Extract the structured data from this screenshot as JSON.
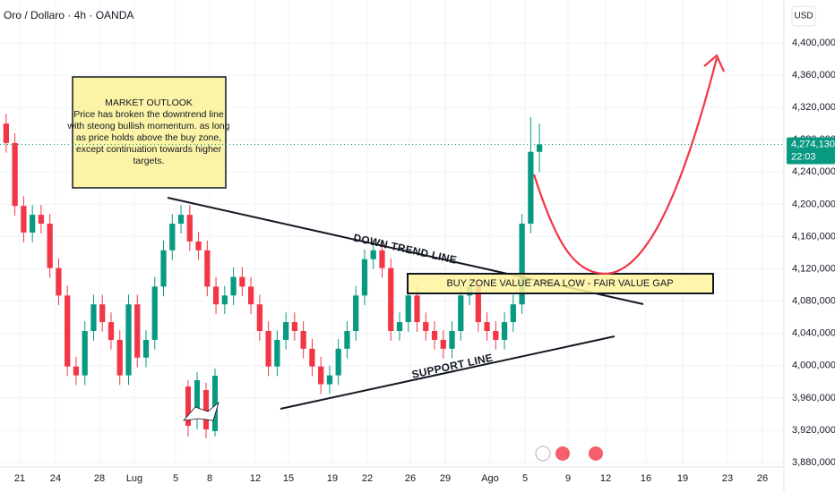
{
  "chart_data": {
    "type": "candlestick",
    "title": "Oro / Dollaro · 4h · OANDA",
    "currency": "USD",
    "up_color": "#089981",
    "down_color": "#f23645",
    "grid": true,
    "ylim": [
      3874500,
      4453200
    ],
    "yticks": [
      {
        "value": 3880000,
        "label": "3,880,000"
      },
      {
        "value": 3920000,
        "label": "3,920,000"
      },
      {
        "value": 3960000,
        "label": "3,960,000"
      },
      {
        "value": 4000000,
        "label": "4,000,000"
      },
      {
        "value": 4040000,
        "label": "4,040,000"
      },
      {
        "value": 4080000,
        "label": "4,080,000"
      },
      {
        "value": 4120000,
        "label": "4,120,000"
      },
      {
        "value": 4160000,
        "label": "4,160,000"
      },
      {
        "value": 4200000,
        "label": "4,200,000"
      },
      {
        "value": 4240000,
        "label": "4,240,000"
      },
      {
        "value": 4280000,
        "label": "4,280,000"
      },
      {
        "value": 4320000,
        "label": "4,320,000"
      },
      {
        "value": 4360000,
        "label": "4,360,000"
      },
      {
        "value": 4400000,
        "label": "4,400,000"
      }
    ],
    "xtick_labels": [
      "21",
      "24",
      "28",
      "Lug",
      "5",
      "8",
      "12",
      "15",
      "19",
      "22",
      "26",
      "29",
      "Ago",
      "5",
      "9",
      "12",
      "16",
      "19",
      "23",
      "26"
    ],
    "last_price": {
      "value": 4274130,
      "label": "4,274,130"
    },
    "countdown": "22:03",
    "open": [
      4300000,
      4276000,
      4198000,
      4165000,
      4187000,
      4176000,
      4121000,
      4087000,
      3999000,
      3988000,
      4043000,
      4076000,
      4054000,
      4032000,
      3988000,
      4076000,
      4010000,
      4032000,
      4098000,
      4143000,
      4176000,
      4187000,
      4154000,
      4143000,
      4098000,
      4076000,
      4087000,
      4110000,
      4098000,
      4076000,
      4043000,
      3999000,
      4032000,
      4054000,
      4043000,
      4021000,
      3999000,
      3977000,
      3988000,
      4021000,
      4043000,
      4087000,
      4132000,
      4143000,
      4121000,
      4043000,
      4054000,
      4087000,
      4054000,
      4043000,
      4032000,
      4021000,
      4043000,
      4087000,
      4098000,
      4054000,
      4043000,
      4032000,
      4054000,
      4076000,
      4176000,
      4265000
    ],
    "high": [
      4312000,
      4288000,
      4210000,
      4199000,
      4199000,
      4188000,
      4133000,
      4099000,
      4011000,
      4055000,
      4088000,
      4088000,
      4066000,
      4044000,
      4088000,
      4088000,
      4044000,
      4110000,
      4155000,
      4188000,
      4199000,
      4199000,
      4166000,
      4155000,
      4110000,
      4099000,
      4122000,
      4122000,
      4110000,
      4088000,
      4055000,
      4044000,
      4066000,
      4066000,
      4055000,
      4033000,
      4011000,
      4000000,
      4033000,
      4055000,
      4099000,
      4144000,
      4155000,
      4155000,
      4133000,
      4066000,
      4099000,
      4099000,
      4066000,
      4055000,
      4044000,
      4055000,
      4099000,
      4110000,
      4110000,
      4066000,
      4055000,
      4066000,
      4088000,
      4188000,
      4308000,
      4300000
    ],
    "low": [
      4264000,
      4186000,
      4153000,
      4153000,
      4164000,
      4109000,
      4075000,
      3987000,
      3976000,
      3976000,
      4031000,
      4042000,
      4020000,
      3976000,
      3976000,
      3998000,
      3998000,
      4020000,
      4086000,
      4131000,
      4164000,
      4142000,
      4131000,
      4086000,
      4064000,
      4064000,
      4075000,
      4086000,
      4064000,
      4031000,
      3987000,
      3987000,
      4020000,
      4031000,
      4009000,
      3987000,
      3965000,
      3965000,
      3976000,
      4009000,
      4031000,
      4075000,
      4120000,
      4109000,
      4031000,
      4031000,
      4042000,
      4042000,
      4031000,
      4020000,
      4009000,
      4009000,
      4031000,
      4075000,
      4042000,
      4031000,
      4020000,
      4020000,
      4042000,
      4064000,
      4164000,
      4240000
    ],
    "close": [
      4276000,
      4198000,
      4165000,
      4187000,
      4176000,
      4121000,
      4087000,
      3999000,
      3988000,
      4043000,
      4076000,
      4054000,
      4032000,
      3988000,
      4076000,
      4010000,
      4032000,
      4098000,
      4143000,
      4176000,
      4187000,
      4154000,
      4143000,
      4098000,
      4076000,
      4087000,
      4110000,
      4098000,
      4076000,
      4043000,
      3999000,
      4032000,
      4054000,
      4043000,
      4021000,
      3999000,
      3977000,
      3988000,
      4021000,
      4043000,
      4087000,
      4132000,
      4143000,
      4121000,
      4043000,
      4054000,
      4087000,
      4054000,
      4043000,
      4032000,
      4021000,
      4043000,
      4087000,
      4098000,
      4054000,
      4043000,
      4032000,
      4054000,
      4076000,
      4176000,
      4265000,
      4274130
    ],
    "annotations": {
      "outlook_title": "MARKET OUTLOOK",
      "outlook_lines": [
        "Price has broken the downtrend line",
        "with steong bullish momentum. as long",
        "as price holds above the buy zone,",
        "except continuation towards higher",
        "targets."
      ],
      "down_trend": "DOWN TREND LINE",
      "support": "SUPPORT LINE",
      "buy_zone": "BUY ZONE VALUE AREA LOW - FAIR VALUE GAP"
    }
  }
}
